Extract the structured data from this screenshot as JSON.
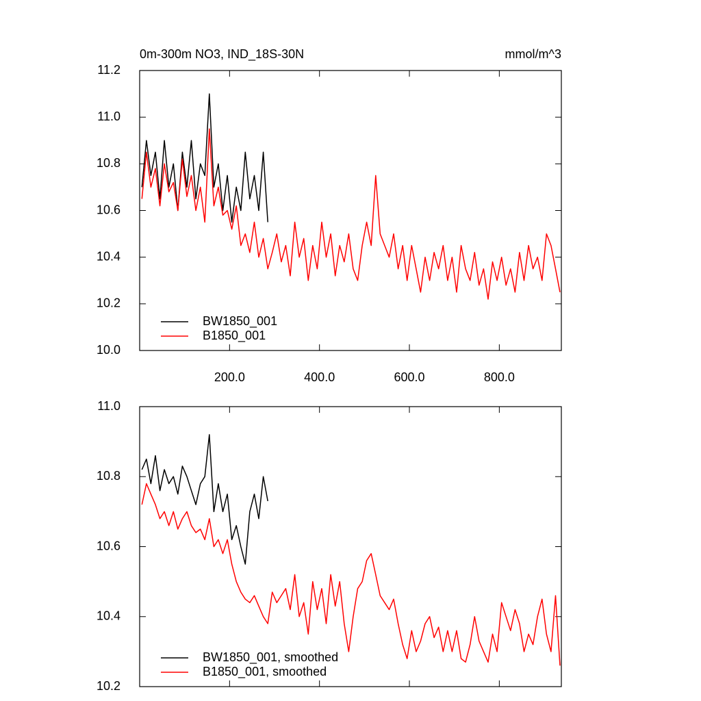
{
  "chart_data": [
    {
      "type": "line",
      "title": "0m-300m NO3, IND_18S-30N",
      "units": "mmol/m^3",
      "x": [
        5,
        15,
        25,
        35,
        45,
        55,
        65,
        75,
        85,
        95,
        105,
        115,
        125,
        135,
        145,
        155,
        165,
        175,
        185,
        195,
        205,
        215,
        225,
        235,
        245,
        255,
        265,
        275,
        285,
        295,
        305,
        315,
        325,
        335,
        345,
        355,
        365,
        375,
        385,
        395,
        405,
        415,
        425,
        435,
        445,
        455,
        465,
        475,
        485,
        495,
        505,
        515,
        525,
        535,
        545,
        555,
        565,
        575,
        585,
        595,
        605,
        615,
        625,
        635,
        645,
        655,
        665,
        675,
        685,
        695,
        705,
        715,
        725,
        735,
        745,
        755,
        765,
        775,
        785,
        795,
        805,
        815,
        825,
        835,
        845,
        855,
        865,
        875,
        885,
        895,
        905,
        915,
        925,
        935
      ],
      "series": [
        {
          "name": "BW1850_001",
          "color": "#000000",
          "values": [
            10.7,
            10.9,
            10.75,
            10.85,
            10.65,
            10.9,
            10.7,
            10.8,
            10.6,
            10.85,
            10.7,
            10.9,
            10.65,
            10.8,
            10.75,
            11.1,
            10.7,
            10.8,
            10.6,
            10.75,
            10.55,
            10.7,
            10.6,
            10.85,
            10.65,
            10.75,
            10.6,
            10.85,
            10.55,
            null,
            null,
            null,
            null,
            null,
            null,
            null,
            null,
            null,
            null,
            null,
            null,
            null,
            null,
            null,
            null,
            null,
            null,
            null,
            null,
            null,
            null,
            null,
            null,
            null,
            null,
            null,
            null,
            null,
            null,
            null,
            null,
            null,
            null,
            null,
            null,
            null,
            null,
            null,
            null,
            null,
            null,
            null,
            null,
            null,
            null,
            null,
            null,
            null,
            null,
            null,
            null,
            null,
            null,
            null,
            null,
            null,
            null,
            null,
            null,
            null,
            null,
            null,
            null,
            null
          ]
        },
        {
          "name": "B1850_001",
          "color": "#ff0000",
          "values": [
            10.65,
            10.85,
            10.7,
            10.78,
            10.62,
            10.8,
            10.68,
            10.72,
            10.6,
            10.82,
            10.66,
            10.75,
            10.6,
            10.7,
            10.55,
            10.95,
            10.62,
            10.7,
            10.58,
            10.6,
            10.52,
            10.62,
            10.45,
            10.5,
            10.42,
            10.55,
            10.4,
            10.48,
            10.35,
            10.42,
            10.5,
            10.38,
            10.45,
            10.32,
            10.55,
            10.4,
            10.48,
            10.3,
            10.45,
            10.35,
            10.55,
            10.4,
            10.5,
            10.32,
            10.45,
            10.38,
            10.5,
            10.35,
            10.3,
            10.45,
            10.55,
            10.45,
            10.75,
            10.5,
            10.45,
            10.4,
            10.5,
            10.35,
            10.45,
            10.3,
            10.45,
            10.35,
            10.25,
            10.4,
            10.3,
            10.42,
            10.35,
            10.45,
            10.3,
            10.4,
            10.25,
            10.45,
            10.35,
            10.3,
            10.42,
            10.28,
            10.35,
            10.22,
            10.38,
            10.3,
            10.4,
            10.28,
            10.35,
            10.25,
            10.42,
            10.3,
            10.45,
            10.35,
            10.4,
            10.3,
            10.5,
            10.45,
            10.35,
            10.25
          ]
        }
      ],
      "xlim": [
        0,
        938
      ],
      "xticks": [
        {
          "value": 200,
          "label": "200.0"
        },
        {
          "value": 400,
          "label": "400.0"
        },
        {
          "value": 600,
          "label": "600.0"
        },
        {
          "value": 800,
          "label": "800.0"
        }
      ],
      "ylim": [
        10,
        11.2
      ],
      "yticks": [
        {
          "value": 10,
          "label": "10.0"
        },
        10.2,
        10.4,
        10.6,
        10.8,
        {
          "value": 11,
          "label": "11.0"
        },
        11.2
      ],
      "legend": "lower left"
    },
    {
      "type": "line",
      "x": [
        5,
        15,
        25,
        35,
        45,
        55,
        65,
        75,
        85,
        95,
        105,
        115,
        125,
        135,
        145,
        155,
        165,
        175,
        185,
        195,
        205,
        215,
        225,
        235,
        245,
        255,
        265,
        275,
        285,
        295,
        305,
        315,
        325,
        335,
        345,
        355,
        365,
        375,
        385,
        395,
        405,
        415,
        425,
        435,
        445,
        455,
        465,
        475,
        485,
        495,
        505,
        515,
        525,
        535,
        545,
        555,
        565,
        575,
        585,
        595,
        605,
        615,
        625,
        635,
        645,
        655,
        665,
        675,
        685,
        695,
        705,
        715,
        725,
        735,
        745,
        755,
        765,
        775,
        785,
        795,
        805,
        815,
        825,
        835,
        845,
        855,
        865,
        875,
        885,
        895,
        905,
        915,
        925,
        935
      ],
      "series": [
        {
          "name": "BW1850_001, smoothed",
          "color": "#000000",
          "values": [
            10.82,
            10.85,
            10.78,
            10.86,
            10.76,
            10.82,
            10.78,
            10.8,
            10.75,
            10.83,
            10.8,
            10.76,
            10.72,
            10.78,
            10.8,
            10.92,
            10.7,
            10.78,
            10.7,
            10.75,
            10.62,
            10.66,
            10.6,
            10.55,
            10.7,
            10.75,
            10.68,
            10.8,
            10.73,
            null,
            null,
            null,
            null,
            null,
            null,
            null,
            null,
            null,
            null,
            null,
            null,
            null,
            null,
            null,
            null,
            null,
            null,
            null,
            null,
            null,
            null,
            null,
            null,
            null,
            null,
            null,
            null,
            null,
            null,
            null,
            null,
            null,
            null,
            null,
            null,
            null,
            null,
            null,
            null,
            null,
            null,
            null,
            null,
            null,
            null,
            null,
            null,
            null,
            null,
            null,
            null,
            null,
            null,
            null,
            null,
            null,
            null,
            null,
            null,
            null,
            null,
            null,
            null,
            null
          ]
        },
        {
          "name": "B1850_001, smoothed",
          "color": "#ff0000",
          "values": [
            10.72,
            10.78,
            10.75,
            10.72,
            10.68,
            10.7,
            10.66,
            10.7,
            10.65,
            10.68,
            10.7,
            10.66,
            10.64,
            10.65,
            10.62,
            10.68,
            10.6,
            10.62,
            10.58,
            10.62,
            10.55,
            10.5,
            10.47,
            10.45,
            10.44,
            10.46,
            10.43,
            10.4,
            10.38,
            10.47,
            10.44,
            10.46,
            10.48,
            10.42,
            10.52,
            10.4,
            10.44,
            10.35,
            10.5,
            10.42,
            10.48,
            10.38,
            10.52,
            10.43,
            10.5,
            10.38,
            10.3,
            10.4,
            10.48,
            10.5,
            10.56,
            10.58,
            10.52,
            10.46,
            10.44,
            10.42,
            10.45,
            10.38,
            10.32,
            10.28,
            10.36,
            10.3,
            10.33,
            10.38,
            10.4,
            10.34,
            10.37,
            10.3,
            10.36,
            10.3,
            10.36,
            10.28,
            10.27,
            10.32,
            10.4,
            10.33,
            10.3,
            10.27,
            10.35,
            10.3,
            10.44,
            10.4,
            10.36,
            10.42,
            10.38,
            10.3,
            10.35,
            10.32,
            10.4,
            10.45,
            10.35,
            10.3,
            10.46,
            10.26
          ]
        }
      ],
      "xlim": [
        0,
        938
      ],
      "xticks": [
        200,
        400,
        600,
        800
      ],
      "ylim": [
        10.2,
        11
      ],
      "yticks": [
        10.2,
        10.4,
        10.6,
        10.8,
        {
          "value": 11,
          "label": "11.0"
        }
      ],
      "legend": "lower left"
    }
  ]
}
